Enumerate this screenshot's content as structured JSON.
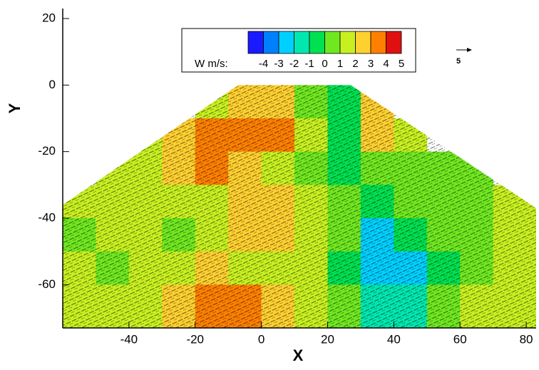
{
  "chart_data": {
    "type": "contour",
    "xlabel": "X",
    "ylabel": "Y",
    "xlim": [
      -60,
      83
    ],
    "ylim": [
      -73,
      23
    ],
    "xticks": [
      -40,
      -20,
      0,
      20,
      40,
      60,
      80
    ],
    "yticks": [
      20,
      0,
      -20,
      -40,
      -60
    ],
    "x": [
      -55,
      -45,
      -35,
      -25,
      -15,
      -5,
      5,
      15,
      25,
      35,
      45,
      55,
      65,
      75
    ],
    "y": [
      -5,
      -15,
      -25,
      -35,
      -45,
      -55,
      -65
    ],
    "z": [
      [
        null,
        null,
        null,
        null,
        2,
        3,
        3,
        1,
        0,
        3,
        null,
        null,
        null,
        null
      ],
      [
        null,
        null,
        2,
        3,
        4,
        4,
        4,
        2,
        0,
        3,
        2,
        null,
        null,
        null
      ],
      [
        null,
        2,
        2,
        3,
        4,
        3,
        2,
        1,
        0,
        1,
        1,
        1,
        1,
        null
      ],
      [
        2,
        2,
        2,
        2,
        2,
        3,
        3,
        2,
        1,
        0,
        1,
        1,
        1,
        2
      ],
      [
        1,
        2,
        2,
        1,
        2,
        3,
        3,
        2,
        1,
        -2,
        0,
        1,
        1,
        2
      ],
      [
        2,
        1,
        2,
        2,
        3,
        2,
        2,
        2,
        0,
        -2,
        -2,
        0,
        1,
        2
      ],
      [
        2,
        2,
        2,
        3,
        4,
        4,
        3,
        2,
        1,
        -1,
        -1,
        1,
        2,
        2
      ]
    ],
    "colorbar": {
      "label": "W m/s:",
      "ticks": [
        -4,
        -3,
        -2,
        -1,
        0,
        1,
        2,
        3,
        4,
        5
      ],
      "colors": [
        "#1a1aff",
        "#0080ff",
        "#00d0ff",
        "#00e8b0",
        "#00e050",
        "#70e820",
        "#c8f020",
        "#ffd030",
        "#ff8000",
        "#e01010"
      ]
    },
    "reference_vector": "5"
  }
}
